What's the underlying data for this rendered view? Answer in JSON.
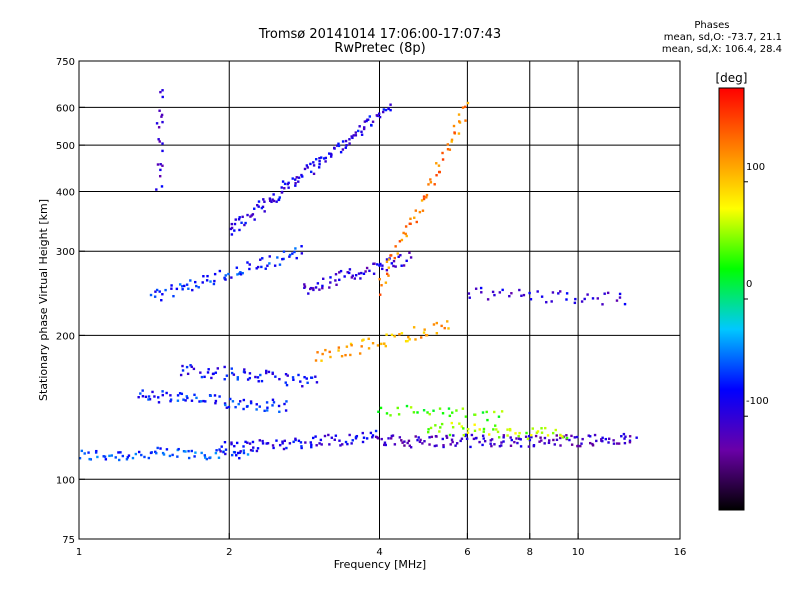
{
  "chart_data": {
    "type": "scatter",
    "title": "Tromsø 20141014 17:06:00-17:07:43",
    "subtitle": "RwPretec (8p)",
    "xlabel": "Frequency [MHz]",
    "ylabel": "Stationary phase Virtual Height [km]",
    "x_scale": "log",
    "y_scale": "log",
    "xlim": [
      1,
      16
    ],
    "ylim": [
      75,
      750
    ],
    "x_ticks": [
      1,
      2,
      4,
      6,
      8,
      10,
      16
    ],
    "y_ticks": [
      75,
      100,
      200,
      300,
      400,
      500,
      600,
      750
    ],
    "x_gridlines": [
      2,
      4,
      6,
      8,
      10
    ],
    "y_gridlines": [
      100,
      200,
      300,
      400,
      500,
      600
    ],
    "grid": true,
    "colorbar": {
      "label": "[deg]",
      "range": [
        -180,
        180
      ],
      "ticks": [
        100,
        0,
        -100
      ],
      "colormap": [
        "#000000",
        "#6a00a8",
        "#0000ff",
        "#00c8ff",
        "#00ff00",
        "#ffff00",
        "#ff8000",
        "#ff0000"
      ]
    },
    "stats": {
      "header": "Phases",
      "line_o": "mean, sd,O: -73.7, 21.1",
      "line_x": "mean, sd,X: 106.4, 28.4"
    },
    "traces": [
      {
        "name": "",
        "f_start": 1.0,
        "f_end": 2.2,
        "h_start": 112,
        "h_end": 114,
        "phase": -60,
        "count": 70
      },
      {
        "name": "",
        "f_start": 1.9,
        "f_end": 4.0,
        "h_start": 116,
        "h_end": 123,
        "phase": -90,
        "count": 80
      },
      {
        "name": "",
        "f_start": 4.0,
        "f_end": 13.0,
        "h_start": 120,
        "h_end": 121,
        "phase": -110,
        "count": 140
      },
      {
        "name": "",
        "f_start": 5.0,
        "f_end": 9.5,
        "h_start": 128,
        "h_end": 124,
        "phase": 60,
        "count": 50
      },
      {
        "name": "",
        "f_start": 1.3,
        "f_end": 2.6,
        "h_start": 150,
        "h_end": 142,
        "phase": -70,
        "count": 70
      },
      {
        "name": "",
        "f_start": 1.6,
        "f_end": 3.0,
        "h_start": 170,
        "h_end": 160,
        "phase": -80,
        "count": 60
      },
      {
        "name": "",
        "f_start": 1.4,
        "f_end": 2.8,
        "h_start": 240,
        "h_end": 300,
        "phase": -70,
        "count": 70
      },
      {
        "name": "",
        "f_start": 2.0,
        "f_end": 4.2,
        "h_start": 330,
        "h_end": 600,
        "phase": -90,
        "count": 120
      },
      {
        "name": "",
        "f_start": 2.8,
        "f_end": 4.6,
        "h_start": 250,
        "h_end": 290,
        "phase": -100,
        "count": 60
      },
      {
        "name": "",
        "f_start": 3.0,
        "f_end": 5.5,
        "h_start": 180,
        "h_end": 210,
        "phase": 110,
        "count": 50
      },
      {
        "name": "",
        "f_start": 4.0,
        "f_end": 6.0,
        "h_start": 250,
        "h_end": 600,
        "phase": 130,
        "count": 60
      },
      {
        "name": "",
        "f_start": 4.0,
        "f_end": 7.0,
        "h_start": 140,
        "h_end": 135,
        "phase": 40,
        "count": 30
      },
      {
        "name": "",
        "f_start": 6.0,
        "f_end": 12.5,
        "h_start": 245,
        "h_end": 238,
        "phase": -100,
        "count": 40
      },
      {
        "name": "",
        "f_start": 1.45,
        "f_end": 1.45,
        "h_start": 400,
        "h_end": 650,
        "phase": -100,
        "count": 20
      }
    ]
  }
}
